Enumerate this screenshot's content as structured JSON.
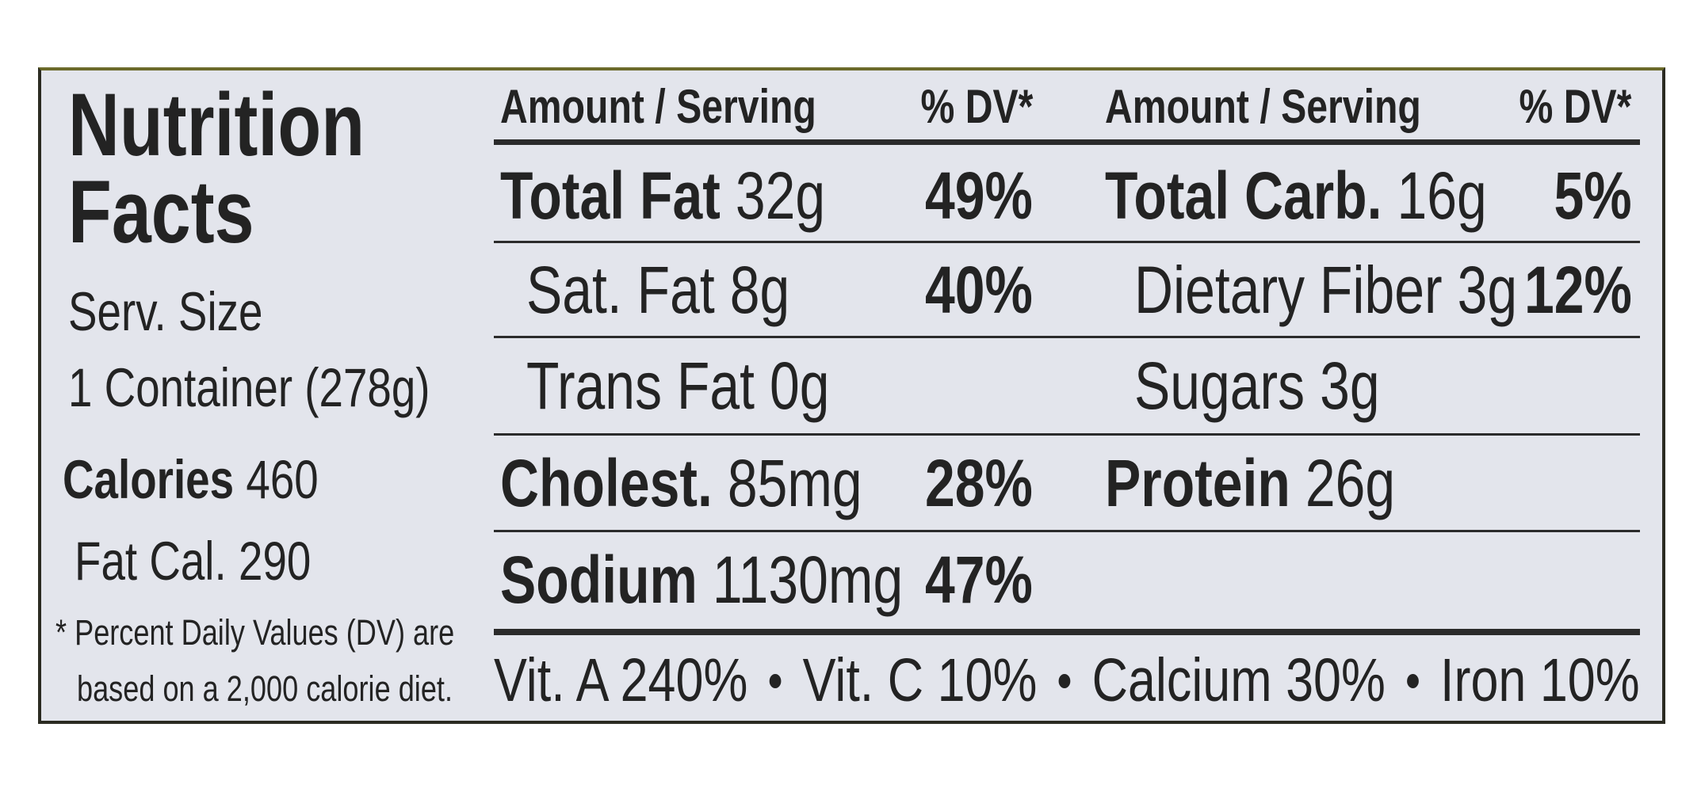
{
  "title_lines": [
    "Nutrition",
    "Facts"
  ],
  "serving": {
    "label": "Serv. Size",
    "value": "1 Container (278g)"
  },
  "calories": {
    "label": "Calories",
    "value": "460"
  },
  "fat_calories": {
    "label": "Fat Cal.",
    "value": "290"
  },
  "footnote": [
    "* Percent Daily Values (DV) are",
    "based on a 2,000 calorie diet."
  ],
  "headers": [
    {
      "amount": "Amount / Serving",
      "dv": "% DV*"
    },
    {
      "amount": "Amount / Serving",
      "dv": "% DV*"
    }
  ],
  "rows": [
    [
      {
        "name": "Total Fat",
        "amount": "32g",
        "dv": "49%"
      },
      {
        "name": "Total Carb.",
        "amount": "16g",
        "dv": "5%"
      }
    ],
    [
      {
        "name": "Sat. Fat",
        "amount": "8g",
        "dv": "40%",
        "sub": true
      },
      {
        "name": "Dietary Fiber",
        "amount": "3g",
        "dv": "12%",
        "sub": true
      }
    ],
    [
      {
        "name": "Trans Fat",
        "amount": "0g",
        "sub": true
      },
      {
        "name": "Sugars",
        "amount": "3g",
        "sub": true
      }
    ],
    [
      {
        "name": "Cholest.",
        "amount": "85mg",
        "dv": "28%"
      },
      {
        "name": "Protein",
        "amount": "26g"
      }
    ],
    [
      {
        "name": "Sodium",
        "amount": "1130mg",
        "dv": "47%"
      },
      null
    ]
  ],
  "vitamins": [
    "Vit. A 240%",
    "Vit. C 10%",
    "Calcium 30%",
    "Iron 10%"
  ]
}
